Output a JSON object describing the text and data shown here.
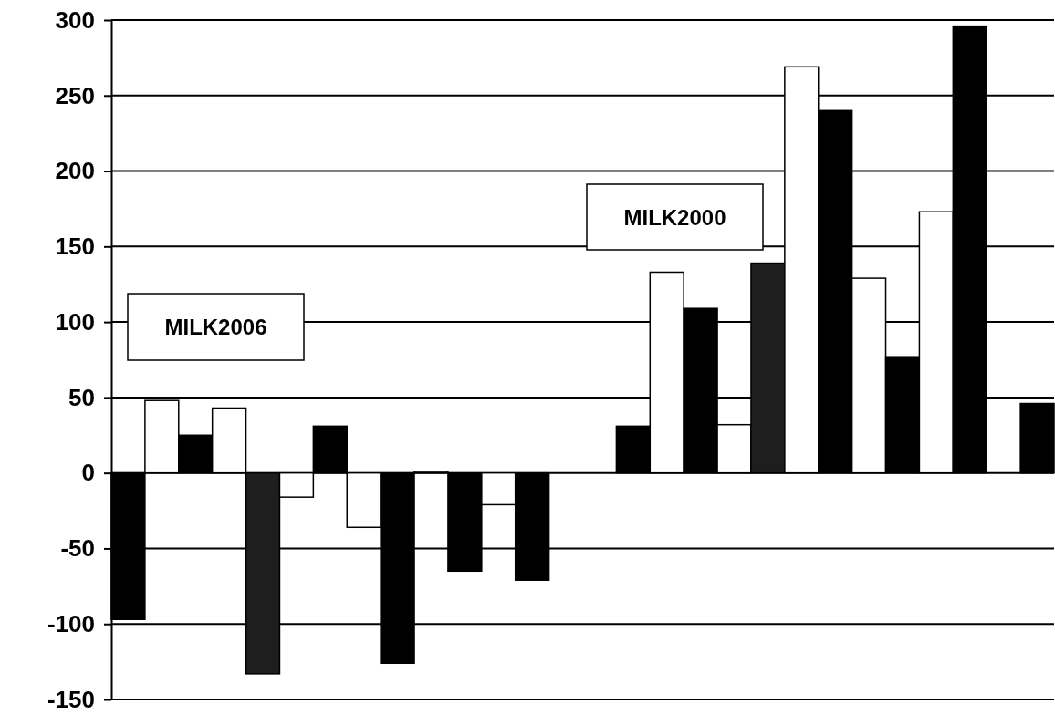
{
  "chart_data": {
    "type": "bar",
    "categories": [
      null,
      null,
      null,
      null,
      null,
      null,
      null,
      null,
      null,
      null,
      null,
      null,
      null,
      null,
      null,
      null,
      null,
      null,
      null,
      null,
      null,
      null,
      null,
      null,
      null,
      null,
      null,
      null
    ],
    "values": [
      -97,
      48,
      25,
      43,
      -133,
      -16,
      31,
      -36,
      -126,
      1,
      -65,
      -21,
      -71,
      null,
      null,
      31,
      133,
      109,
      32,
      139,
      269,
      240,
      129,
      77,
      173,
      296,
      null,
      46
    ],
    "colors": [
      "#000000",
      "#ffffff",
      "#000000",
      "#ffffff",
      "#1e1e1e",
      "#ffffff",
      "#000000",
      "#ffffff",
      "#000000",
      "#ffffff",
      "#000000",
      "#ffffff",
      "#000000",
      null,
      null,
      "#000000",
      "#ffffff",
      "#000000",
      "#ffffff",
      "#1e1e1e",
      "#ffffff",
      "#000000",
      "#ffffff",
      "#000000",
      "#ffffff",
      "#000000",
      null,
      "#000000"
    ],
    "ylim": [
      -150,
      300
    ],
    "yticks": [
      -150,
      -100,
      -50,
      0,
      50,
      100,
      150,
      200,
      250,
      300
    ],
    "grid": "y",
    "annotations": [
      "MILK2006",
      "MILK2000"
    ]
  }
}
